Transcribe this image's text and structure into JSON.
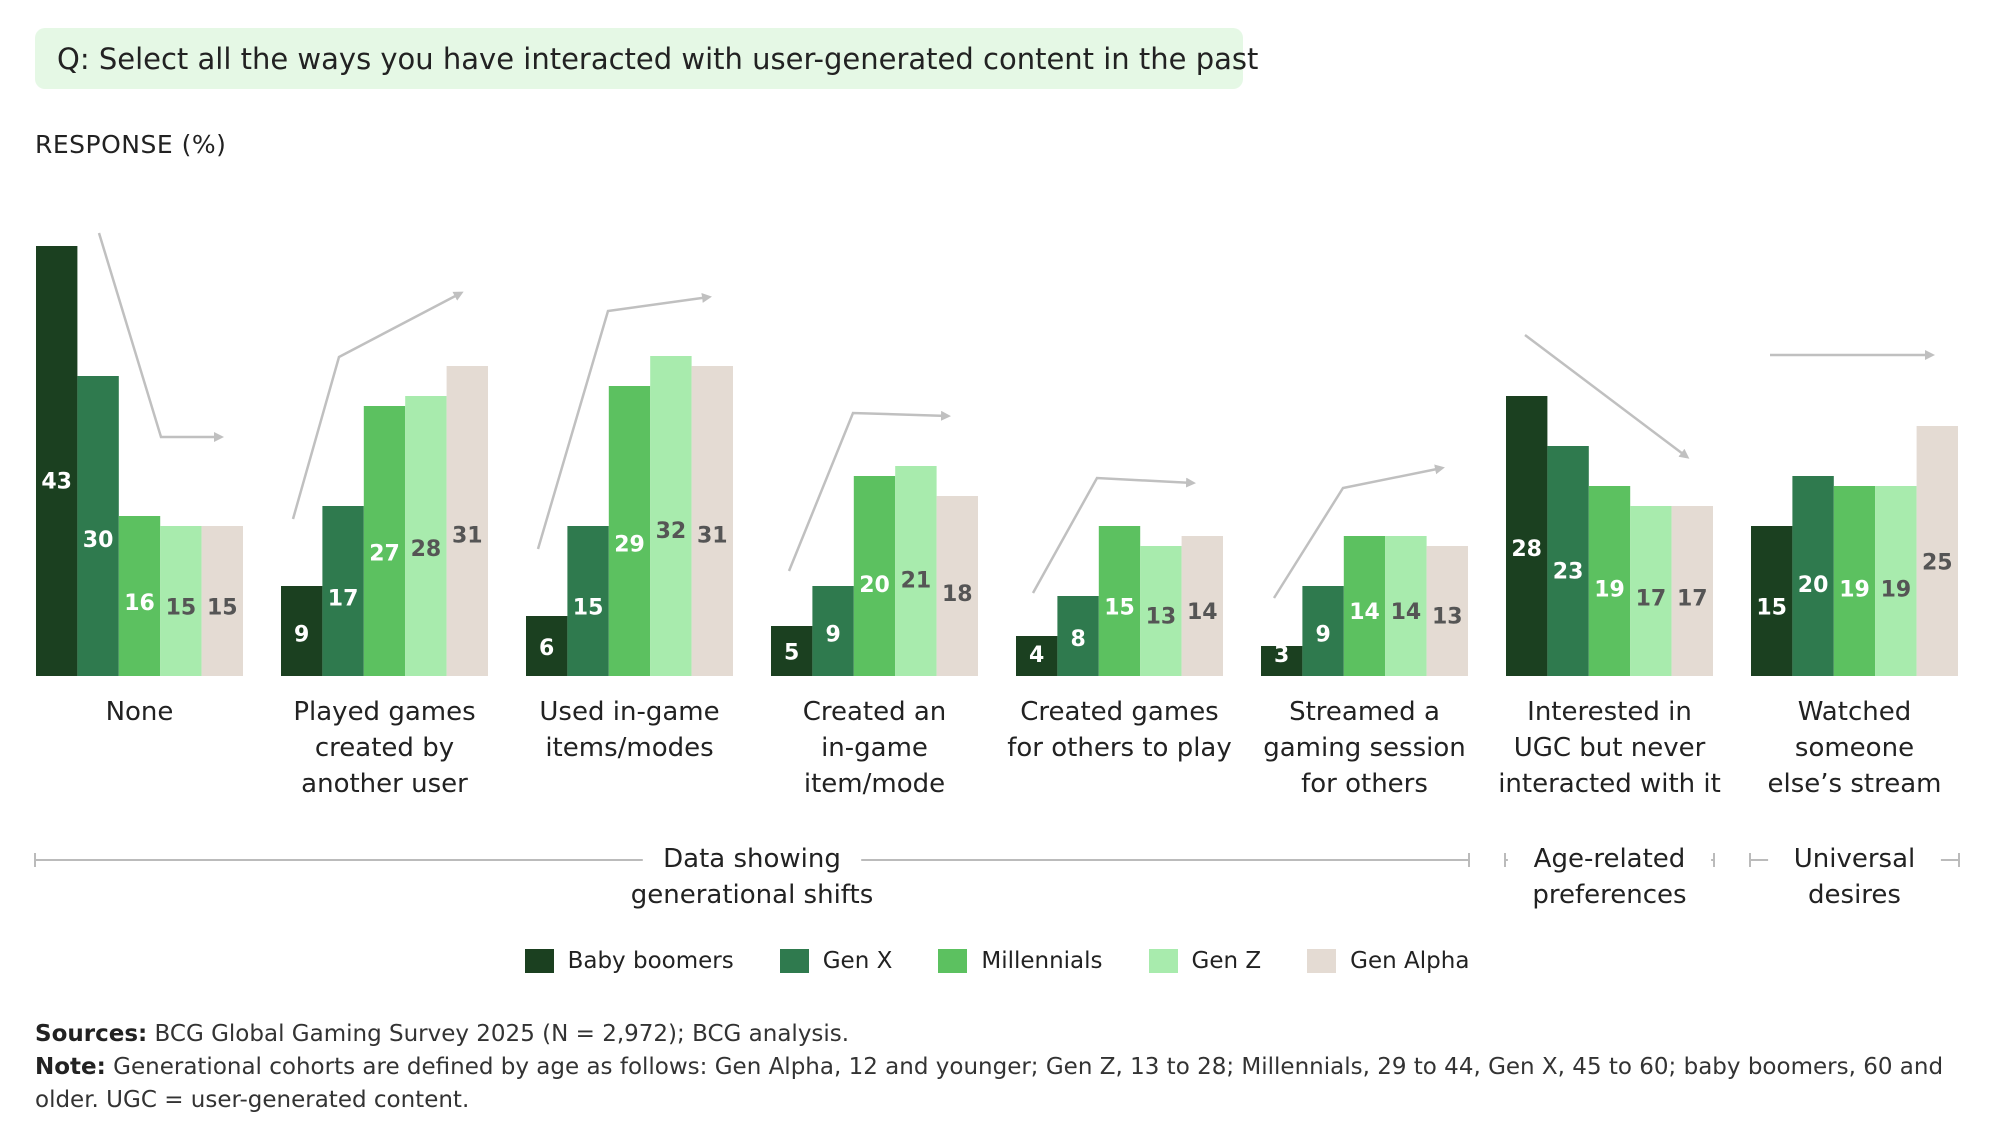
{
  "question": "Q: Select all the ways you have interacted with user-generated content in the past",
  "response_label": "RESPONSE (%)",
  "colors": {
    "Baby boomers": "#1b4020",
    "Gen X": "#2f7a4e",
    "Millennials": "#5cc160",
    "Gen Z": "#a8ebad",
    "Gen Alpha": "#e4dbd3",
    "trend_arrow": "#c0c0c0",
    "bracket_line": "#bbbbbb"
  },
  "chart_data": {
    "type": "bar",
    "ylim": [
      0,
      45
    ],
    "categories": [
      [
        "None"
      ],
      [
        "Played games",
        "created by",
        "another user"
      ],
      [
        "Used in-game",
        "items/modes"
      ],
      [
        "Created an",
        "in-game",
        "item/mode"
      ],
      [
        "Created games",
        "for others to play"
      ],
      [
        "Streamed a",
        "gaming session",
        "for others"
      ],
      [
        "Interested in",
        "UGC but never",
        "interacted with it"
      ],
      [
        "Watched",
        "someone",
        "else’s stream"
      ]
    ],
    "series": [
      {
        "name": "Baby boomers",
        "values": [
          43,
          9,
          6,
          5,
          4,
          3,
          28,
          15
        ]
      },
      {
        "name": "Gen X",
        "values": [
          30,
          17,
          15,
          9,
          8,
          9,
          23,
          20
        ]
      },
      {
        "name": "Millennials",
        "values": [
          16,
          27,
          29,
          20,
          15,
          14,
          19,
          19
        ]
      },
      {
        "name": "Gen Z",
        "values": [
          15,
          28,
          32,
          21,
          13,
          14,
          17,
          19
        ]
      },
      {
        "name": "Gen Alpha",
        "values": [
          15,
          31,
          31,
          18,
          14,
          13,
          17,
          25
        ]
      }
    ],
    "groups": [
      {
        "label": [
          "Data showing",
          "generational shifts"
        ],
        "categories": [
          0,
          5
        ]
      },
      {
        "label": [
          "Age-related",
          "preferences"
        ],
        "categories": [
          6,
          6
        ]
      },
      {
        "label": [
          "Universal",
          "desires"
        ],
        "categories": [
          7,
          7
        ]
      }
    ]
  },
  "legend": [
    "Baby boomers",
    "Gen X",
    "Millennials",
    "Gen Z",
    "Gen Alpha"
  ],
  "footnotes": {
    "sources_label": "Sources:",
    "sources_text": "BCG Global Gaming Survey 2025 (N = 2,972); BCG analysis.",
    "note_label": "Note:",
    "note_text": "Generational cohorts are defined by age as follows: Gen Alpha, 12 and younger; Gen Z, 13 to 28; Millennials, 29 to 44, Gen X, 45 to 60; baby boomers, 60 and older. UGC = user-generated content."
  }
}
